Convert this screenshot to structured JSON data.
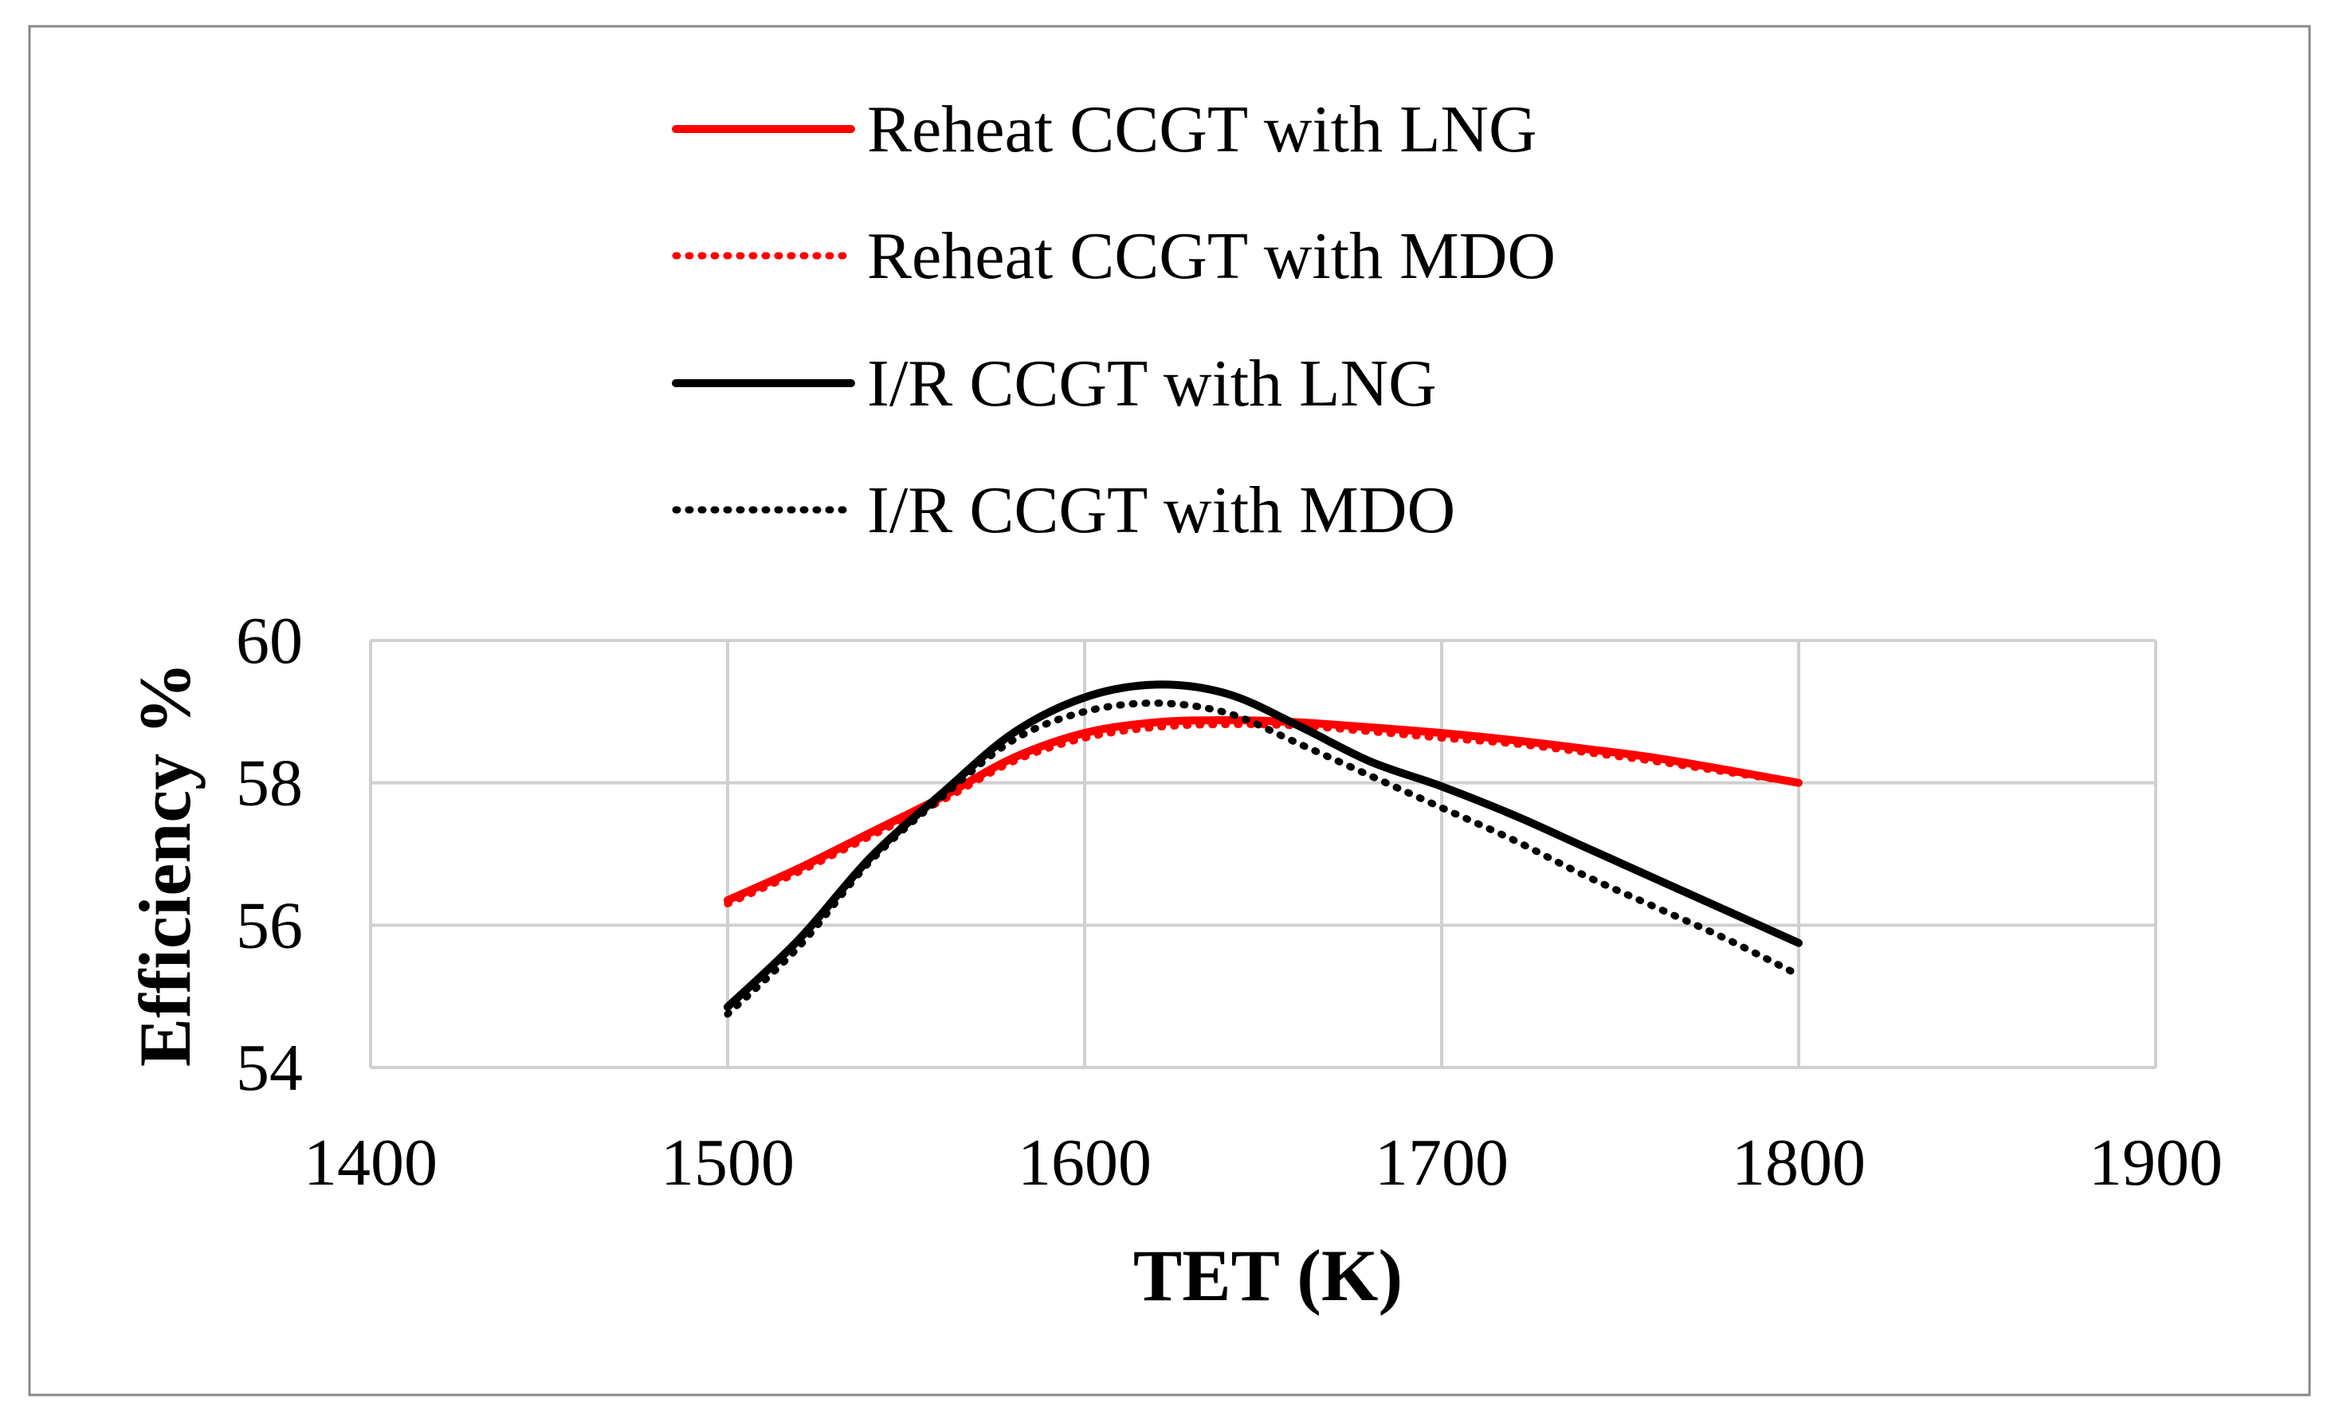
{
  "chart_data": {
    "type": "line",
    "title": "",
    "xlabel": "TET (K)",
    "ylabel": "Efficiency %",
    "xlim": [
      1400,
      1900
    ],
    "ylim": [
      54,
      60
    ],
    "xticks": [
      1400,
      1500,
      1600,
      1700,
      1800,
      1900
    ],
    "yticks": [
      54,
      56,
      58,
      60
    ],
    "xtick_labels": [
      "1400",
      "1500",
      "1600",
      "1700",
      "1800",
      "1900"
    ],
    "ytick_labels": [
      "54",
      "56",
      "58",
      "60"
    ],
    "grid": true,
    "legend_position": "top",
    "series": [
      {
        "name": "Reheat CCGT with LNG",
        "color": "#ff0000",
        "style": "solid",
        "x": [
          1500,
          1520,
          1540,
          1560,
          1580,
          1600,
          1620,
          1640,
          1660,
          1680,
          1700,
          1720,
          1740,
          1760,
          1780,
          1800
        ],
        "y": [
          56.35,
          56.8,
          57.3,
          57.8,
          58.35,
          58.7,
          58.85,
          58.88,
          58.85,
          58.78,
          58.7,
          58.6,
          58.48,
          58.35,
          58.18,
          58.0
        ]
      },
      {
        "name": "Reheat CCGT with MDO",
        "color": "#ff0000",
        "style": "dotted",
        "x": [
          1500,
          1520,
          1540,
          1560,
          1580,
          1600,
          1620,
          1640,
          1660,
          1680,
          1700,
          1720,
          1740,
          1760,
          1780,
          1800
        ],
        "y": [
          56.3,
          56.75,
          57.25,
          57.75,
          58.3,
          58.63,
          58.78,
          58.82,
          58.8,
          58.72,
          58.63,
          58.55,
          58.43,
          58.3,
          58.15,
          58.0
        ]
      },
      {
        "name": "I/R CCGT with LNG",
        "color": "#000000",
        "style": "solid",
        "x": [
          1500,
          1520,
          1540,
          1560,
          1580,
          1600,
          1620,
          1640,
          1660,
          1680,
          1700,
          1720,
          1740,
          1760,
          1780,
          1800
        ],
        "y": [
          54.85,
          55.8,
          56.95,
          57.85,
          58.7,
          59.2,
          59.38,
          59.25,
          58.8,
          58.3,
          57.95,
          57.55,
          57.1,
          56.65,
          56.2,
          55.75
        ]
      },
      {
        "name": "I/R CCGT with MDO",
        "color": "#000000",
        "style": "dotted",
        "x": [
          1500,
          1520,
          1540,
          1560,
          1580,
          1600,
          1620,
          1640,
          1660,
          1680,
          1700,
          1720,
          1740,
          1760,
          1780,
          1800
        ],
        "y": [
          54.75,
          55.7,
          56.9,
          57.8,
          58.6,
          59.0,
          59.12,
          58.98,
          58.55,
          58.1,
          57.65,
          57.2,
          56.7,
          56.25,
          55.8,
          55.3
        ]
      }
    ]
  }
}
